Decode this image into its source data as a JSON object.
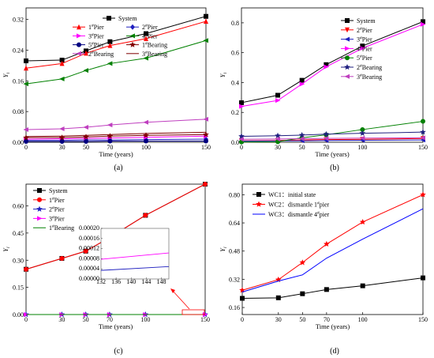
{
  "chart_data": [
    {
      "id": "a",
      "type": "line",
      "panel_label": "(a)",
      "xlabel": "Time (years)",
      "ylabel": "Y_i",
      "x": [
        0,
        30,
        50,
        70,
        100,
        150
      ],
      "x_ticks": [
        "0",
        "30",
        "50",
        "70",
        "100",
        "150"
      ],
      "xlim": [
        0,
        150
      ],
      "ylim": [
        0,
        0.35
      ],
      "y_ticks": [
        "0.00",
        "0.08",
        "0.16",
        "0.24",
        "0.32"
      ],
      "y_tick_values": [
        0,
        0.08,
        0.16,
        0.24,
        0.32
      ],
      "legend_columns": 2,
      "series": [
        {
          "name": "System",
          "values": [
            0.212,
            0.214,
            0.238,
            0.262,
            0.283,
            0.328
          ],
          "color": "#000000",
          "marker": "square"
        },
        {
          "name": "1#Pier",
          "values": [
            0.193,
            0.205,
            0.232,
            0.252,
            0.27,
            0.315
          ],
          "color": "#ff0000",
          "marker": "triangle-up"
        },
        {
          "name": "2#Pier",
          "values": [
            0.005,
            0.005,
            0.006,
            0.006,
            0.007,
            0.008
          ],
          "color": "#1f1fbf",
          "marker": "diamond"
        },
        {
          "name": "3#Pier",
          "values": [
            0.008,
            0.009,
            0.01,
            0.011,
            0.013,
            0.016
          ],
          "color": "#ff00ff",
          "marker": "triangle-right"
        },
        {
          "name": "4#Pier",
          "values": [
            0.152,
            0.165,
            0.187,
            0.205,
            0.219,
            0.265
          ],
          "color": "#008000",
          "marker": "triangle-left"
        },
        {
          "name": "5#Pier",
          "values": [
            0.002,
            0.002,
            0.002,
            0.003,
            0.003,
            0.003
          ],
          "color": "#000080",
          "marker": "circle"
        },
        {
          "name": "1#Bearing",
          "values": [
            0.012,
            0.012,
            0.014,
            0.016,
            0.018,
            0.02
          ],
          "color": "#7f0000",
          "marker": "star"
        },
        {
          "name": "2#Bearing",
          "values": [
            0.033,
            0.035,
            0.039,
            0.045,
            0.052,
            0.06
          ],
          "color": "#bf3fbf",
          "marker": "triangle-left"
        },
        {
          "name": "3#Bearing",
          "values": [
            0.015,
            0.016,
            0.018,
            0.02,
            0.023,
            0.026
          ],
          "color": "#7f0000",
          "marker": "none"
        }
      ]
    },
    {
      "id": "b",
      "type": "line",
      "panel_label": "(b)",
      "xlabel": "Time (years)",
      "ylabel": "Y_i",
      "x": [
        0,
        30,
        50,
        70,
        100,
        150
      ],
      "x_ticks": [
        "0",
        "30",
        "50",
        "70",
        "100",
        "150"
      ],
      "xlim": [
        0,
        150
      ],
      "ylim": [
        0,
        0.9
      ],
      "y_ticks": [
        "0.0",
        "0.2",
        "0.4",
        "0.6",
        "0.8"
      ],
      "y_tick_values": [
        0,
        0.2,
        0.4,
        0.6,
        0.8
      ],
      "legend_columns": 1,
      "series": [
        {
          "name": "System",
          "values": [
            0.265,
            0.315,
            0.415,
            0.52,
            0.645,
            0.808
          ],
          "color": "#000000",
          "marker": "square"
        },
        {
          "name": "2#Pier",
          "values": [
            0.01,
            0.012,
            0.015,
            0.018,
            0.02,
            0.025
          ],
          "color": "#ff0000",
          "marker": "triangle-down"
        },
        {
          "name": "3#Pier",
          "values": [
            0.008,
            0.009,
            0.01,
            0.012,
            0.013,
            0.015
          ],
          "color": "#1f1fbf",
          "marker": "triangle-left"
        },
        {
          "name": "4#Pier",
          "values": [
            0.24,
            0.28,
            0.39,
            0.505,
            0.63,
            0.79
          ],
          "color": "#ff00ff",
          "marker": "triangle-right"
        },
        {
          "name": "5#Pier",
          "values": [
            0.002,
            0.003,
            0.03,
            0.05,
            0.085,
            0.14
          ],
          "color": "#008000",
          "marker": "circle"
        },
        {
          "name": "2#Bearing",
          "values": [
            0.04,
            0.044,
            0.048,
            0.054,
            0.06,
            0.068
          ],
          "color": "#1f1f7f",
          "marker": "star"
        },
        {
          "name": "3#Bearing",
          "values": [
            0.02,
            0.022,
            0.024,
            0.026,
            0.028,
            0.03
          ],
          "color": "#bf3fbf",
          "marker": "triangle-left"
        }
      ]
    },
    {
      "id": "c",
      "type": "line",
      "panel_label": "(c)",
      "xlabel": "Time (years)",
      "ylabel": "Y_i",
      "x": [
        0,
        30,
        50,
        70,
        100,
        150
      ],
      "x_ticks": [
        "0",
        "30",
        "50",
        "70",
        "100",
        "150"
      ],
      "xlim": [
        0,
        150
      ],
      "ylim": [
        0,
        0.72
      ],
      "y_ticks": [
        "0.00",
        "0.15",
        "0.30",
        "0.45",
        "0.60"
      ],
      "y_tick_values": [
        0,
        0.15,
        0.3,
        0.45,
        0.6
      ],
      "legend_columns": 1,
      "series": [
        {
          "name": "System",
          "values": [
            0.25,
            0.31,
            0.35,
            0.425,
            0.548,
            0.72
          ],
          "color": "#000000",
          "marker": "square"
        },
        {
          "name": "1#Pier",
          "values": [
            0.25,
            0.31,
            0.35,
            0.425,
            0.548,
            0.72
          ],
          "color": "#ff0000",
          "marker": "circle"
        },
        {
          "name": "2#Pier",
          "values": [
            0.0,
            0.0,
            0.0,
            0.0,
            0.0,
            0.0
          ],
          "color": "#1f1fbf",
          "marker": "star"
        },
        {
          "name": "3#Pier",
          "values": [
            0.0,
            0.0,
            0.0,
            0.0,
            0.0,
            0.0
          ],
          "color": "#ff00ff",
          "marker": "triangle-right"
        },
        {
          "name": "1#Bearing",
          "values": [
            0.0,
            0.0,
            0.0,
            0.0,
            0.0,
            0.0
          ],
          "color": "#008000",
          "marker": "none"
        }
      ],
      "inset": {
        "xlim": [
          132,
          150
        ],
        "x_ticks": [
          "132",
          "136",
          "140",
          "144",
          "148"
        ],
        "x_tick_values": [
          132,
          136,
          140,
          144,
          148
        ],
        "ylim": [
          0,
          0.0002
        ],
        "y_ticks": [
          "0.00000",
          "0.00004",
          "0.00008",
          "0.00012",
          "0.00016",
          "0.00020"
        ],
        "y_tick_values": [
          0,
          4e-05,
          8e-05,
          0.00012,
          0.00016,
          0.0002
        ],
        "series": [
          {
            "name": "3#Pier",
            "x": [
              132,
              150
            ],
            "values": [
              7.8e-05,
              0.000103
            ],
            "color": "#ff00ff"
          },
          {
            "name": "2#Pier",
            "x": [
              132,
              150
            ],
            "values": [
              3.4e-05,
              4.9e-05
            ],
            "color": "#1f1fbf"
          }
        ]
      }
    },
    {
      "id": "d",
      "type": "line",
      "panel_label": "(d)",
      "xlabel": "Time (years)",
      "ylabel": "Y_i",
      "x": [
        0,
        30,
        50,
        70,
        100,
        150
      ],
      "x_ticks": [
        "0",
        "30",
        "50",
        "70",
        "100",
        "150"
      ],
      "xlim": [
        0,
        150
      ],
      "ylim": [
        0.12,
        0.86
      ],
      "y_ticks": [
        "0.16",
        "0.32",
        "0.48",
        "0.64",
        "0.80"
      ],
      "y_tick_values": [
        0.16,
        0.32,
        0.48,
        0.64,
        0.8
      ],
      "legend_columns": 1,
      "series": [
        {
          "name": "WC1：initial state",
          "values": [
            0.212,
            0.215,
            0.238,
            0.262,
            0.283,
            0.328
          ],
          "color": "#000000",
          "marker": "square"
        },
        {
          "name": "WC2：dismantle 1#pier",
          "values": [
            0.258,
            0.318,
            0.415,
            0.52,
            0.645,
            0.8
          ],
          "color": "#ff0000",
          "marker": "star"
        },
        {
          "name": "WC3：dismantle 4#pier",
          "values": [
            0.248,
            0.31,
            0.345,
            0.44,
            0.548,
            0.72
          ],
          "color": "#0000ff",
          "marker": "none"
        }
      ]
    }
  ]
}
